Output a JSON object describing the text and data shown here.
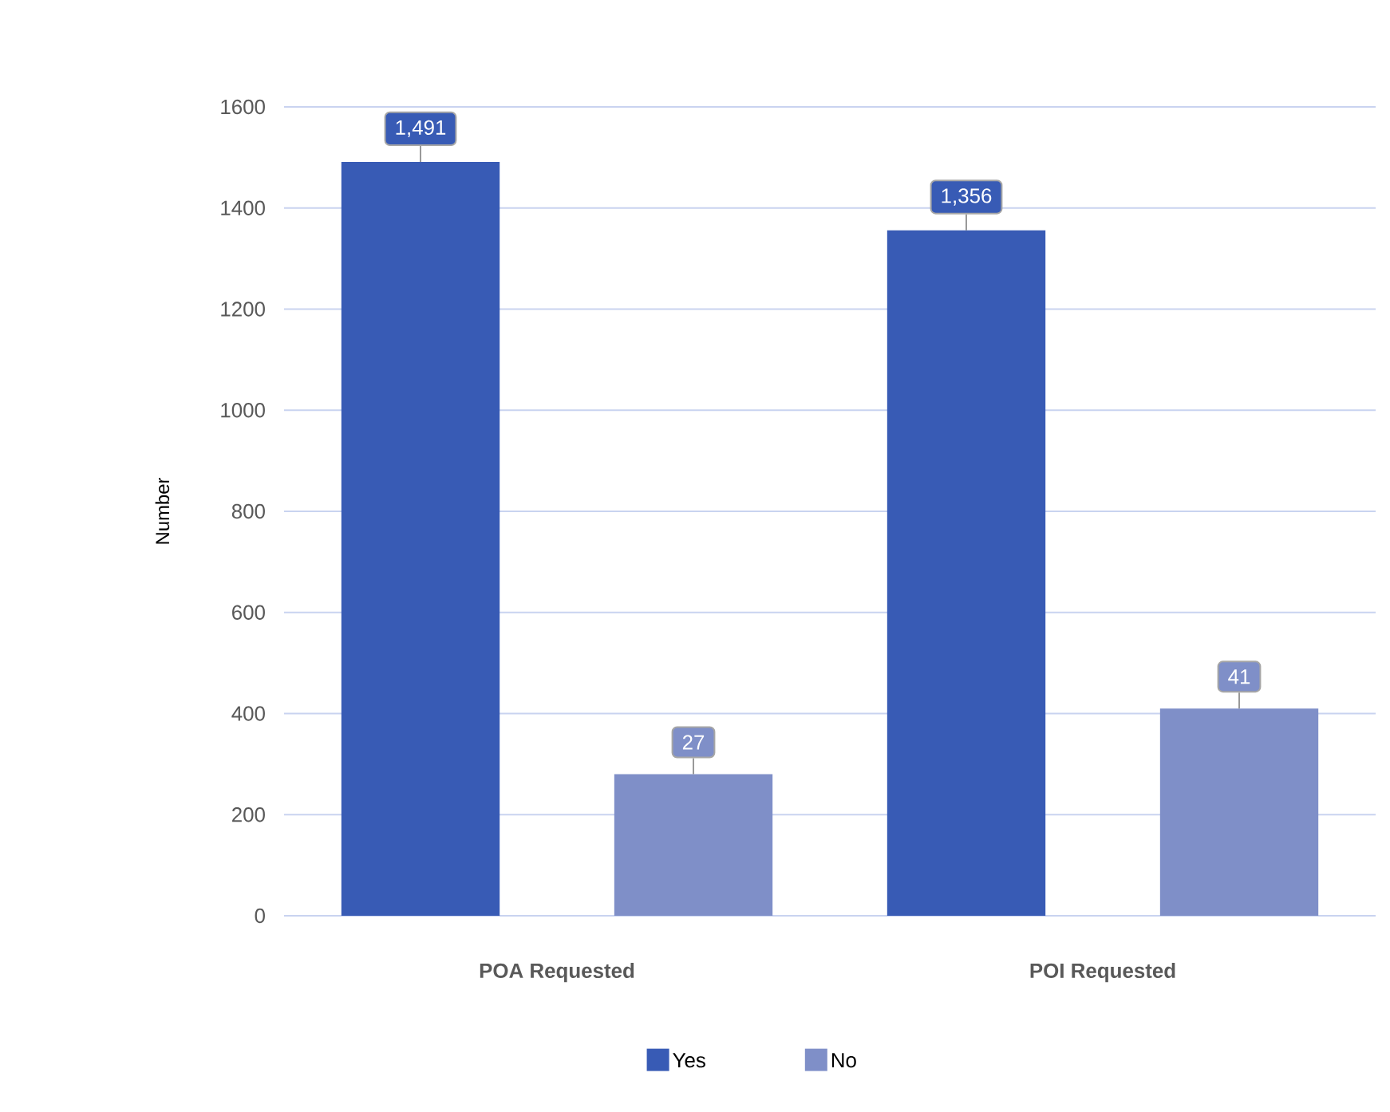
{
  "chart_data": {
    "type": "bar",
    "ylabel": "Number",
    "categories": [
      "POA Requested",
      "POI Requested"
    ],
    "series": [
      {
        "name": "Yes",
        "color": "#385bb5",
        "values": [
          1491,
          1356
        ],
        "value_labels": [
          "1,491",
          "1,356"
        ]
      },
      {
        "name": "No",
        "color": "#7f8fc8",
        "values": [
          280,
          410
        ]
      }
    ],
    "annotations": [
      "27",
      "41"
    ],
    "ylim": [
      0,
      1600
    ],
    "yticks": [
      0,
      200,
      400,
      600,
      800,
      1000,
      1200,
      1400,
      1600
    ],
    "grid": "y",
    "legend": "bottom"
  }
}
